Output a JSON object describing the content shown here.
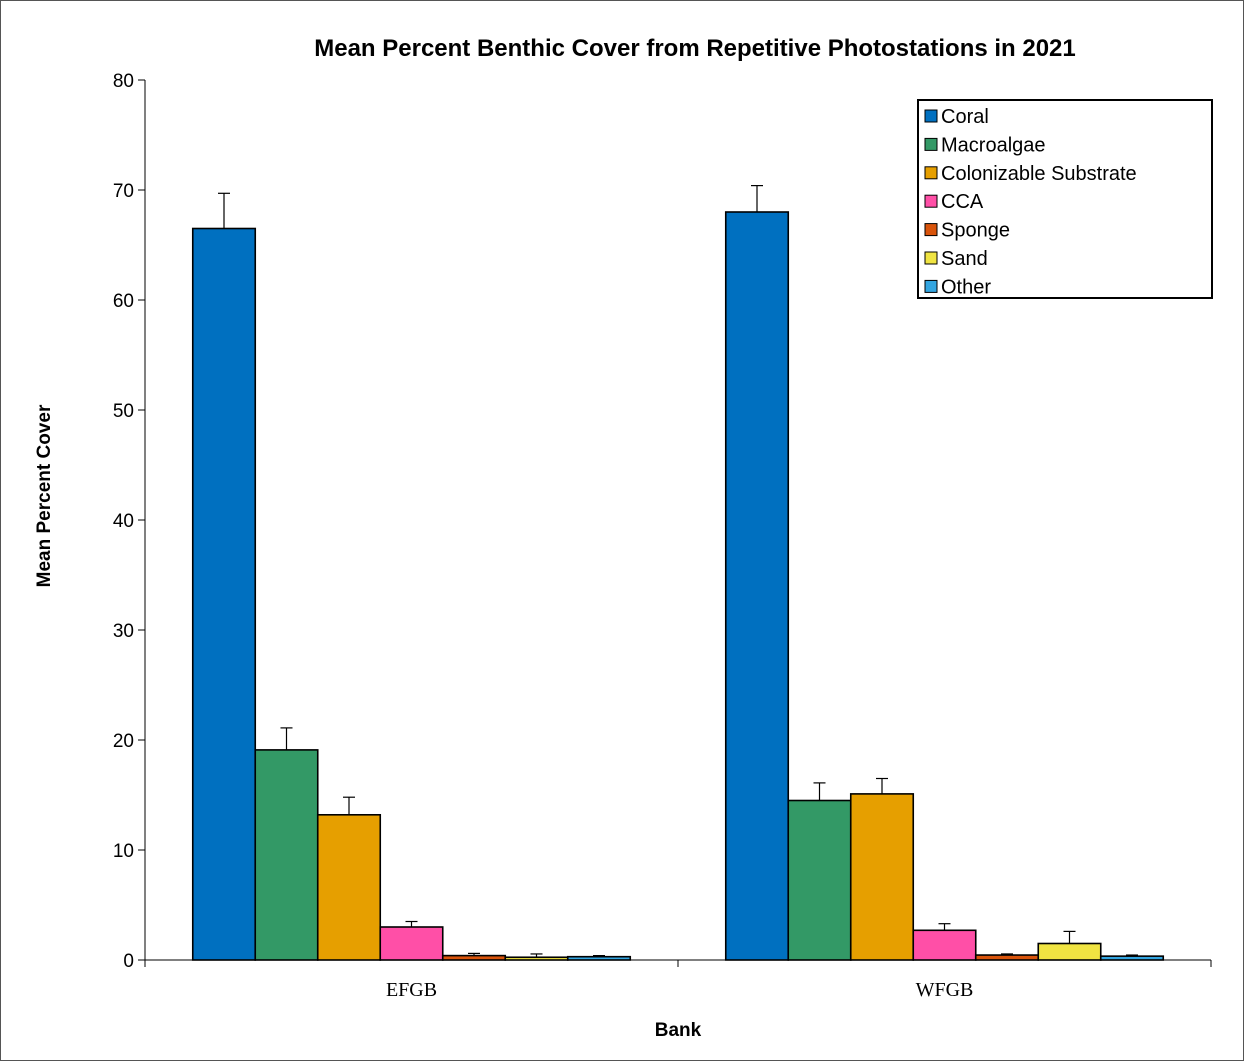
{
  "chart_data": {
    "type": "bar",
    "title": "Mean Percent Benthic Cover from Repetitive Photostations in 2021",
    "xlabel": "Bank",
    "ylabel": "Mean Percent Cover",
    "ylim": [
      0,
      80
    ],
    "yticks": [
      0,
      10,
      20,
      30,
      40,
      50,
      60,
      70,
      80
    ],
    "ytick_labels": [
      "0",
      "10",
      "20",
      "30",
      "40",
      "50",
      "60",
      "70",
      "80"
    ],
    "grid": false,
    "legend_position": "top-right",
    "categories": [
      "EFGB",
      "WFGB"
    ],
    "series": [
      {
        "name": "Coral",
        "color": "#0070C0",
        "values": [
          66.5,
          68.0
        ],
        "errors": [
          3.2,
          2.4
        ]
      },
      {
        "name": "Macroalgae",
        "color": "#339966",
        "values": [
          19.1,
          14.5
        ],
        "errors": [
          2.0,
          1.6
        ]
      },
      {
        "name": "Colonizable Substrate",
        "color": "#E69F00",
        "values": [
          13.2,
          15.1
        ],
        "errors": [
          1.6,
          1.4
        ]
      },
      {
        "name": "CCA",
        "color": "#FF4FA7",
        "values": [
          3.0,
          2.7
        ],
        "errors": [
          0.5,
          0.6
        ]
      },
      {
        "name": "Sponge",
        "color": "#D9540B",
        "values": [
          0.4,
          0.45
        ],
        "errors": [
          0.2,
          0.1
        ]
      },
      {
        "name": "Sand",
        "color": "#F0E442",
        "values": [
          0.25,
          1.5
        ],
        "errors": [
          0.3,
          1.1
        ]
      },
      {
        "name": "Other",
        "color": "#33A5E0",
        "values": [
          0.3,
          0.35
        ],
        "errors": [
          0.1,
          0.1
        ]
      }
    ]
  }
}
